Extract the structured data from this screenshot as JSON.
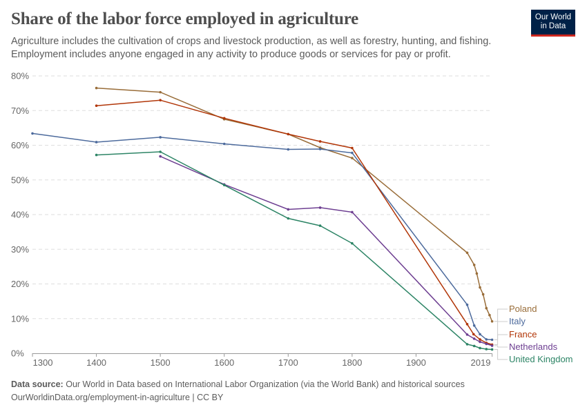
{
  "title": "Share of the labor force employed in agriculture",
  "subtitle": "Agriculture includes the cultivation of crops and livestock production, as well as forestry, hunting, and fishing. Employment includes anyone engaged in any activity to produce goods or services for pay or profit.",
  "logo": {
    "line1": "Our World",
    "line2": "in Data"
  },
  "footer": {
    "source_label": "Data source:",
    "source": "Our World in Data based on International Labor Organization (via the World Bank) and historical sources",
    "url": "OurWorldinData.org/employment-in-agriculture | CC BY"
  },
  "chart_data": {
    "type": "line",
    "title": "Share of the labor force employed in agriculture",
    "xlim": [
      1300,
      2019
    ],
    "ylim": [
      0,
      80
    ],
    "x_ticks": [
      "1300",
      "1400",
      "1500",
      "1600",
      "1700",
      "1800",
      "1900",
      "2019"
    ],
    "y_ticks": [
      "0%",
      "10%",
      "20%",
      "30%",
      "40%",
      "50%",
      "60%",
      "70%",
      "80%"
    ],
    "grid": "horizontal dashed",
    "legend": "right end labels",
    "series": [
      {
        "name": "Poland",
        "color": "#996D39",
        "x": [
          1400,
          1500,
          1600,
          1700,
          1750,
          1800,
          1980,
          1991,
          1995,
          2000,
          2005,
          2010,
          2015,
          2019
        ],
        "y": [
          76.5,
          75.3,
          67.5,
          63.2,
          59.3,
          56.3,
          29.0,
          25.5,
          23,
          19,
          17,
          13,
          11,
          9.2
        ]
      },
      {
        "name": "Italy",
        "color": "#4C6A9C",
        "x": [
          1300,
          1400,
          1500,
          1600,
          1700,
          1750,
          1800,
          1980,
          1991,
          2000,
          2010,
          2019
        ],
        "y": [
          63.4,
          60.9,
          62.3,
          60.4,
          58.8,
          58.9,
          57.8,
          14,
          8,
          5.5,
          4,
          3.9
        ]
      },
      {
        "name": "France",
        "color": "#B13507",
        "x": [
          1400,
          1500,
          1600,
          1700,
          1750,
          1800,
          1980,
          1990,
          2000,
          2010,
          2019
        ],
        "y": [
          71.4,
          73.0,
          67.8,
          63.2,
          61.1,
          59.2,
          8.4,
          5.5,
          4,
          3,
          2.5
        ]
      },
      {
        "name": "Netherlands",
        "color": "#6D3E91",
        "x": [
          1500,
          1600,
          1700,
          1750,
          1800,
          1980,
          1991,
          2000,
          2010,
          2019
        ],
        "y": [
          56.8,
          48.7,
          41.5,
          42.0,
          40.7,
          5.4,
          4.2,
          3.3,
          2.7,
          2.2
        ]
      },
      {
        "name": "United Kingdom",
        "color": "#2C8465",
        "x": [
          1400,
          1500,
          1600,
          1700,
          1750,
          1800,
          1980,
          1991,
          2000,
          2010,
          2019
        ],
        "y": [
          57.2,
          58.1,
          48.5,
          38.9,
          36.8,
          31.7,
          2.6,
          2.1,
          1.5,
          1.2,
          1.1
        ]
      }
    ]
  }
}
